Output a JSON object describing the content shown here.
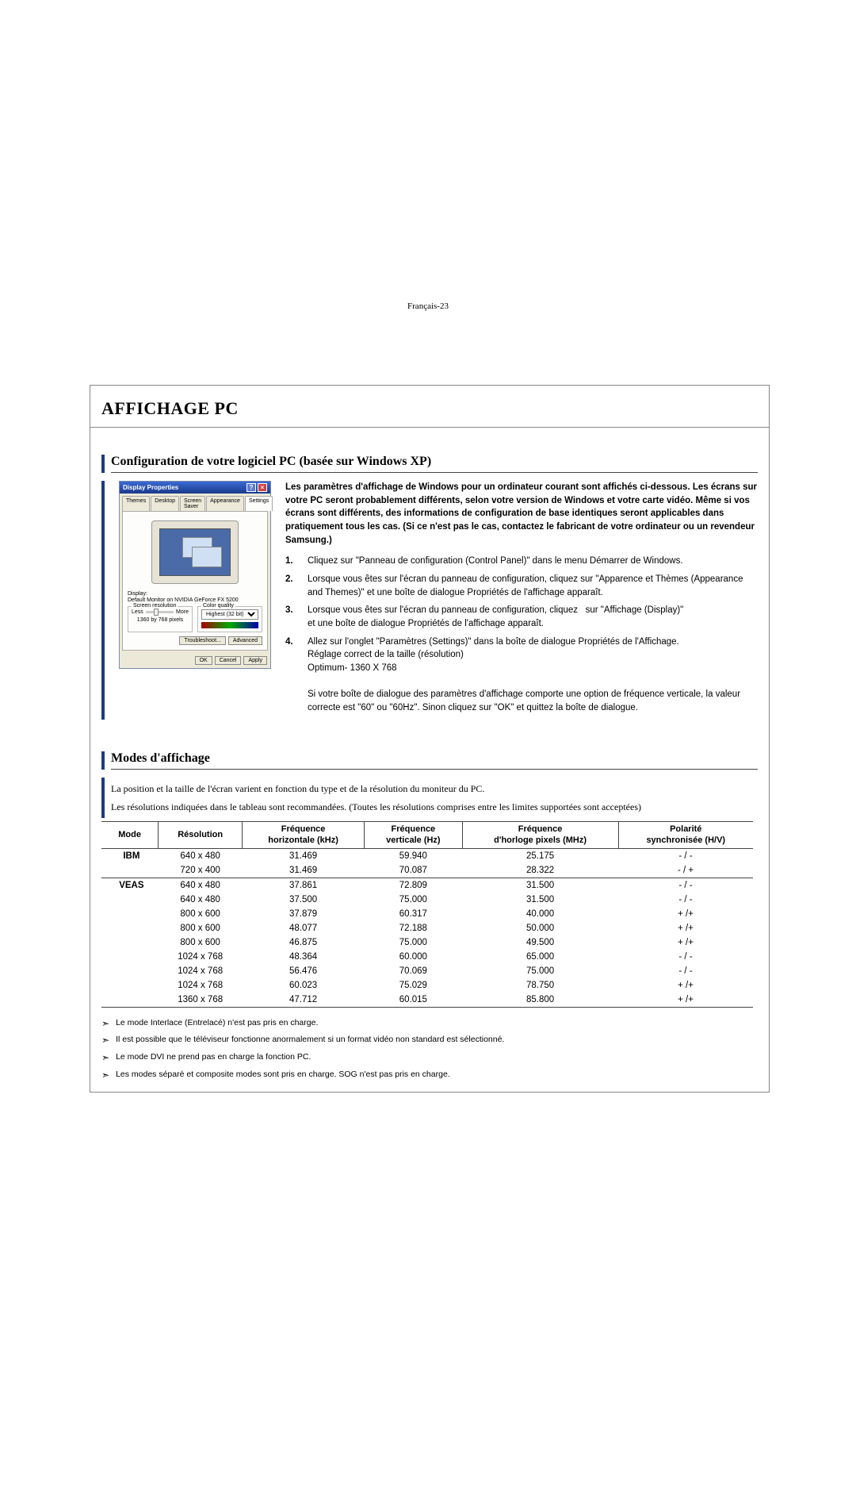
{
  "page_title": "AFFICHAGE PC",
  "section1_title": "Configuration de votre logiciel PC (basée sur Windows XP)",
  "dialog": {
    "title": "Display Properties",
    "tabs": [
      "Themes",
      "Desktop",
      "Screen Saver",
      "Appearance",
      "Settings"
    ],
    "display_label": "Display:",
    "display_value": "Default Monitor on NVIDIA GeForce FX 5200",
    "res_group": "Screen resolution",
    "res_less": "Less",
    "res_more": "More",
    "res_value": "1360 by 768 pixels",
    "qual_group": "Color quality",
    "qual_value": "Highest (32 bit)",
    "troubleshoot": "Troubleshoot...",
    "advanced": "Advanced",
    "ok": "OK",
    "cancel": "Cancel",
    "apply": "Apply"
  },
  "instr_bold": "Les paramètres d'affichage de Windows pour un ordinateur courant sont affichés ci-dessous. Les écrans sur votre PC seront probablement différents, selon votre version de Windows et votre carte vidéo. Même si vos écrans sont différents, des informations de configuration de base identiques seront applicables dans pratiquement tous les cas. (Si ce n'est pas le cas, contactez le fabricant de votre ordinateur ou un revendeur Samsung.)",
  "steps": {
    "s1": "Cliquez sur \"Panneau de configuration (Control Panel)\" dans le menu Démarrer de Windows.",
    "s2": "Lorsque vous êtes sur l'écran du panneau de configuration, cliquez sur \"Apparence et Thèmes (Appearance and Themes)\" et une boîte de dialogue Propriétés de l'affichage apparaît.",
    "s3a": "Lorsque vous êtes sur l'écran du panneau de configuration, cliquez",
    "s3b": "sur \"Affichage (Display)\"",
    "s3c": "et une boîte de dialogue Propriétés de l'affichage apparaît.",
    "s4a": "Allez sur l'onglet \"Paramètres (Settings)\" dans la boîte de dialogue Propriétés de l'Affichage.",
    "s4b": "Réglage correct de la taille (résolution)",
    "s4c": "Optimum- 1360 X 768",
    "s4d": "Si votre boîte de dialogue des paramètres d'affichage comporte une option de fréquence verticale, la valeur correcte est \"60\" ou \"60Hz\". Sinon cliquez sur \"OK\" et quittez la boîte de dialogue."
  },
  "section2_title": "Modes d'affichage",
  "modes_intro1": "La position et la taille de l'écran varient en fonction du type et de la résolution du moniteur du PC.",
  "modes_intro2": "Les résolutions indiquées dans le tableau sont recommandées. (Toutes les résolutions comprises entre les limites supportées sont acceptées)",
  "table": {
    "headers": {
      "mode": "Mode",
      "res": "Résolution",
      "fh1": "Fréquence",
      "fh2": "horizontale (kHz)",
      "fv1": "Fréquence",
      "fv2": "verticale (Hz)",
      "fp1": "Fréquence",
      "fp2": "d'horloge pixels (MHz)",
      "po1": "Polarité",
      "po2": "synchronisée (H/V)"
    },
    "ibm_label": "IBM",
    "ibm_rows": [
      {
        "res": "640 x 480",
        "fh": "31.469",
        "fv": "59.940",
        "fp": "25.175",
        "po": "- / -"
      },
      {
        "res": "720 x 400",
        "fh": "31.469",
        "fv": "70.087",
        "fp": "28.322",
        "po": "- / +"
      }
    ],
    "veas_label": "VEAS",
    "veas_rows": [
      {
        "res": "640 x 480",
        "fh": "37.861",
        "fv": "72.809",
        "fp": "31.500",
        "po": "- / -"
      },
      {
        "res": "640 x 480",
        "fh": "37.500",
        "fv": "75.000",
        "fp": "31.500",
        "po": "- / -"
      },
      {
        "res": "800 x 600",
        "fh": "37.879",
        "fv": "60.317",
        "fp": "40.000",
        "po": "+ /+"
      },
      {
        "res": "800 x 600",
        "fh": "48.077",
        "fv": "72.188",
        "fp": "50.000",
        "po": "+ /+"
      },
      {
        "res": "800 x 600",
        "fh": "46.875",
        "fv": "75.000",
        "fp": "49.500",
        "po": "+ /+"
      },
      {
        "res": "1024 x 768",
        "fh": "48.364",
        "fv": "60.000",
        "fp": "65.000",
        "po": "- / -"
      },
      {
        "res": "1024 x 768",
        "fh": "56.476",
        "fv": "70.069",
        "fp": "75.000",
        "po": "- / -"
      },
      {
        "res": "1024 x 768",
        "fh": "60.023",
        "fv": "75.029",
        "fp": "78.750",
        "po": "+ /+"
      },
      {
        "res": "1360 x 768",
        "fh": "47.712",
        "fv": "60.015",
        "fp": "85.800",
        "po": "+ /+"
      }
    ]
  },
  "notes": [
    "Le mode Interlace (Entrelacé) n'est pas pris en charge.",
    "Il est possible que le téléviseur fonctionne anormalement si un format vidéo non standard est sélectionné.",
    "Le mode DVI ne prend pas en charge la fonction PC.",
    "Les modes séparé et composite modes sont pris en charge. SOG n'est pas pris en charge."
  ],
  "footer": "Français-23"
}
